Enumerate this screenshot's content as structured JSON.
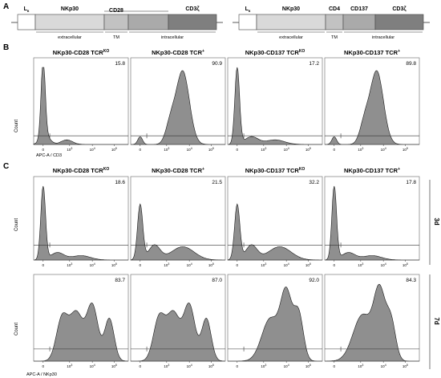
{
  "panel_letters": {
    "a": "A",
    "b": "B",
    "c": "C"
  },
  "constructs": [
    {
      "segments": [
        {
          "text": "L",
          "sub": "κ",
          "fill": "#ffffff"
        },
        {
          "text": "NKp30",
          "fill": "#d9d9d9"
        },
        {
          "text": "CD28",
          "fill": "#c2c2c2"
        },
        {
          "text": "",
          "fill": "#aaaaaa"
        },
        {
          "text": "CD3ζ",
          "fill": "#7f7f7f"
        }
      ],
      "domains": [
        "extracellular",
        "TM",
        "intracellular"
      ]
    },
    {
      "segments": [
        {
          "text": "L",
          "sub": "κ",
          "fill": "#ffffff"
        },
        {
          "text": "NKp30",
          "fill": "#d9d9d9"
        },
        {
          "text": "CD4",
          "fill": "#c2c2c2"
        },
        {
          "text": "CD137",
          "fill": "#aaaaaa"
        },
        {
          "text": "CD3ζ",
          "fill": "#7f7f7f"
        }
      ],
      "domains": [
        "extracellular",
        "TM",
        "intracellular"
      ]
    }
  ],
  "samples": [
    {
      "name": "NKp30-CD28 TCR",
      "sup": "KO"
    },
    {
      "name": "NKp30-CD28 TCR",
      "sup": "+"
    },
    {
      "name": "NKp30-CD137 TCR",
      "sup": "KO"
    },
    {
      "name": "NKp30-CD137 TCR",
      "sup": "+"
    }
  ],
  "panel_b": {
    "y_axis_label": "Count",
    "x_axis_label": "APC-A / CD3",
    "percentages": [
      "15.8",
      "90.9",
      "17.2",
      "89.8"
    ],
    "tick_labels": [
      "0",
      "10",
      "10",
      "10"
    ],
    "tick_exponents": [
      "",
      "3",
      "4",
      "5"
    ]
  },
  "panel_c": {
    "y_axis_label": "Count",
    "x_axis_label": "APC-A / NKp30",
    "row_labels": [
      "3d",
      "7d"
    ],
    "row_3d_percentages": [
      "18.6",
      "21.5",
      "32.2",
      "17.8"
    ],
    "row_7d_percentages": [
      "83.7",
      "87.0",
      "92.0",
      "84.3"
    ],
    "tick_labels": [
      "0",
      "10",
      "10",
      "10"
    ],
    "tick_exponents": [
      "",
      "3",
      "4",
      "5"
    ]
  },
  "colors": {
    "histogram_fill": "#8f8f8f",
    "histogram_line": "#1a1a1a",
    "gate_line": "#333333"
  }
}
